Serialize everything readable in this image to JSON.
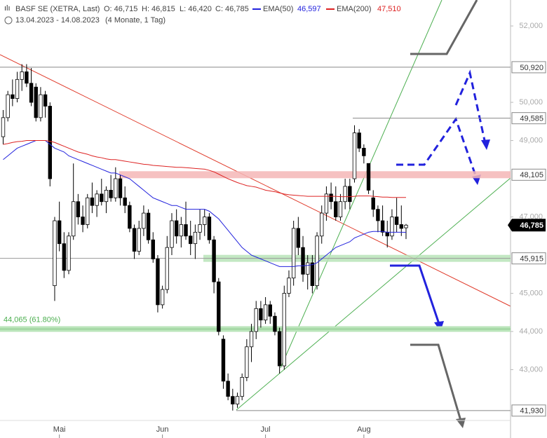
{
  "chart_data": {
    "type": "candlestick",
    "title": "BASF SE (XETRA, Last)",
    "ohlc_labels": [
      "O: 46,715",
      "H: 46,815",
      "L: 46,420",
      "C: 46,785"
    ],
    "period": "13.04.2023 - 14.08.2023",
    "period_note": "(4 Monate, 1 Tag)",
    "categories": [
      null,
      null,
      null,
      null,
      null,
      null,
      null,
      null,
      null,
      null,
      null,
      null,
      "Mai",
      null,
      null,
      null,
      null,
      null,
      null,
      null,
      null,
      null,
      null,
      null,
      null,
      null,
      null,
      null,
      null,
      null,
      null,
      null,
      null,
      null,
      "Jun",
      null,
      null,
      null,
      null,
      null,
      null,
      null,
      null,
      null,
      null,
      null,
      null,
      null,
      null,
      null,
      null,
      null,
      null,
      null,
      null,
      null,
      "Jul",
      null,
      null,
      null,
      null,
      null,
      null,
      null,
      null,
      null,
      null,
      null,
      null,
      null,
      null,
      null,
      null,
      null,
      null,
      null,
      null,
      "Aug",
      null,
      null,
      null,
      null,
      null,
      null,
      null,
      null,
      null
    ],
    "open": [
      49.1,
      49.6,
      50.2,
      50.1,
      50.6,
      50.8,
      50.5,
      50.4,
      49.6,
      50.2,
      49.9,
      45.2,
      46.9,
      46.3,
      45.6,
      46.5,
      47.4,
      47.0,
      46.8,
      47.5,
      47.3,
      47.6,
      47.4,
      47.7,
      47.5,
      48.0,
      47.5,
      47.3,
      46.7,
      46.1,
      46.7,
      47.1,
      46.4,
      45.9,
      44.7,
      45.1,
      46.2,
      46.9,
      46.5,
      46.8,
      46.5,
      46.3,
      46.6,
      46.8,
      47.0,
      46.4,
      45.3,
      43.8,
      42.7,
      42.3,
      42.1,
      42.3,
      42.8,
      43.6,
      44.0,
      44.6,
      44.3,
      44.7,
      44.4,
      44.0,
      43.1,
      45.0,
      45.4,
      46.7,
      46.2,
      45.5,
      45.8,
      45.2,
      46.5,
      47.1,
      47.6,
      47.4,
      47.0,
      47.4,
      47.8,
      48.0,
      49.2,
      48.8,
      48.4,
      47.5,
      47.2,
      46.9,
      46.6,
      46.5,
      47.0,
      46.8,
      46.715
    ],
    "high": [
      49.8,
      50.3,
      50.6,
      50.8,
      51.0,
      51.0,
      50.9,
      50.5,
      50.4,
      50.3,
      50.0,
      47.0,
      47.4,
      46.6,
      46.6,
      48.4,
      47.6,
      47.3,
      47.6,
      47.9,
      47.7,
      48.0,
      47.8,
      48.1,
      48.3,
      48.1,
      47.8,
      47.4,
      46.8,
      46.9,
      47.3,
      47.2,
      46.6,
      46.0,
      45.2,
      46.5,
      47.1,
      47.2,
      47.0,
      47.4,
      46.9,
      46.8,
      47.2,
      47.2,
      47.1,
      46.5,
      45.4,
      43.9,
      42.9,
      42.5,
      42.4,
      42.9,
      43.8,
      44.2,
      44.8,
      44.8,
      44.9,
      44.8,
      44.5,
      44.1,
      45.2,
      45.6,
      46.9,
      47.0,
      46.5,
      46.0,
      46.0,
      46.6,
      47.3,
      47.8,
      47.9,
      47.8,
      47.6,
      48.0,
      48.0,
      49.4,
      49.3,
      48.9,
      48.4,
      47.7,
      47.3,
      47.3,
      46.9,
      47.2,
      47.5,
      47.3,
      46.815
    ],
    "low": [
      48.9,
      49.5,
      49.9,
      50.0,
      50.3,
      50.4,
      49.9,
      49.5,
      49.5,
      49.6,
      47.8,
      44.8,
      46.1,
      45.4,
      45.5,
      46.4,
      46.8,
      46.6,
      46.7,
      47.1,
      47.0,
      47.3,
      47.1,
      47.4,
      47.4,
      47.3,
      47.1,
      46.6,
      45.9,
      46.0,
      46.5,
      46.3,
      45.8,
      44.5,
      44.6,
      45.0,
      46.0,
      46.3,
      46.2,
      46.4,
      46.0,
      45.9,
      46.4,
      46.5,
      46.3,
      45.0,
      43.9,
      42.5,
      42.2,
      41.93,
      42.0,
      42.2,
      42.7,
      43.2,
      43.8,
      44.1,
      44.2,
      44.2,
      43.9,
      42.9,
      43.0,
      44.9,
      45.2,
      46.0,
      45.3,
      45.1,
      45.0,
      45.1,
      46.3,
      46.9,
      47.2,
      46.9,
      46.9,
      47.2,
      47.2,
      47.9,
      48.7,
      48.4,
      47.6,
      47.0,
      46.6,
      46.5,
      46.2,
      46.4,
      46.6,
      46.5,
      46.42
    ],
    "close": [
      49.6,
      50.2,
      50.1,
      50.6,
      50.8,
      50.5,
      50.0,
      49.6,
      50.2,
      49.9,
      48.0,
      46.9,
      46.3,
      45.6,
      46.5,
      47.4,
      47.0,
      46.8,
      47.5,
      47.3,
      47.6,
      47.4,
      47.7,
      47.5,
      48.0,
      47.5,
      47.3,
      46.7,
      46.1,
      46.7,
      47.1,
      46.4,
      45.9,
      44.7,
      45.1,
      46.2,
      46.9,
      46.5,
      46.8,
      46.5,
      46.3,
      46.6,
      46.8,
      47.0,
      46.4,
      45.3,
      44.0,
      42.7,
      42.3,
      42.1,
      42.3,
      42.8,
      43.6,
      44.0,
      44.6,
      44.3,
      44.7,
      44.4,
      44.0,
      43.1,
      45.0,
      45.4,
      46.7,
      46.2,
      45.5,
      45.8,
      45.2,
      46.5,
      47.1,
      47.6,
      47.4,
      47.0,
      47.4,
      47.8,
      47.4,
      49.2,
      48.8,
      48.6,
      47.7,
      47.2,
      46.9,
      46.6,
      46.5,
      47.0,
      46.8,
      46.7,
      46.785
    ],
    "series": [
      {
        "name": "EMA(50)",
        "color": "#2222dd",
        "legend_value": "46,597",
        "values": [
          48.5,
          48.6,
          48.7,
          48.8,
          48.85,
          48.9,
          48.95,
          49.0,
          49.0,
          49.0,
          48.9,
          48.8,
          48.75,
          48.7,
          48.6,
          48.55,
          48.5,
          48.45,
          48.4,
          48.35,
          48.3,
          48.25,
          48.2,
          48.15,
          48.15,
          48.1,
          48.05,
          48.0,
          47.9,
          47.8,
          47.7,
          47.6,
          47.5,
          47.45,
          47.4,
          47.35,
          47.3,
          47.3,
          47.25,
          47.2,
          47.2,
          47.2,
          47.2,
          47.2,
          47.15,
          47.05,
          46.95,
          46.8,
          46.65,
          46.5,
          46.35,
          46.2,
          46.1,
          46.0,
          45.95,
          45.9,
          45.85,
          45.8,
          45.75,
          45.7,
          45.7,
          45.7,
          45.7,
          45.72,
          45.72,
          45.73,
          45.75,
          45.8,
          45.9,
          46.0,
          46.1,
          46.2,
          46.25,
          46.3,
          46.35,
          46.45,
          46.5,
          46.55,
          46.6,
          46.62,
          46.62,
          46.62,
          46.6,
          46.6,
          46.6,
          46.6,
          46.597
        ]
      },
      {
        "name": "EMA(200)",
        "color": "#dd2222",
        "legend_value": "47,510",
        "values": [
          48.9,
          48.92,
          48.95,
          48.97,
          48.98,
          49.0,
          49.0,
          49.0,
          49.0,
          49.0,
          48.98,
          48.95,
          48.9,
          48.85,
          48.8,
          48.75,
          48.7,
          48.67,
          48.64,
          48.6,
          48.57,
          48.55,
          48.52,
          48.5,
          48.5,
          48.48,
          48.46,
          48.44,
          48.42,
          48.4,
          48.38,
          48.37,
          48.35,
          48.34,
          48.33,
          48.32,
          48.31,
          48.3,
          48.3,
          48.29,
          48.28,
          48.27,
          48.26,
          48.25,
          48.22,
          48.18,
          48.12,
          48.06,
          48.0,
          47.95,
          47.9,
          47.86,
          47.82,
          47.8,
          47.78,
          47.74,
          47.7,
          47.68,
          47.66,
          47.63,
          47.6,
          47.58,
          47.57,
          47.56,
          47.55,
          47.54,
          47.54,
          47.54,
          47.54,
          47.54,
          47.54,
          47.54,
          47.53,
          47.53,
          47.53,
          47.54,
          47.55,
          47.55,
          47.55,
          47.54,
          47.53,
          47.52,
          47.52,
          47.51,
          47.51,
          47.51,
          47.51
        ]
      }
    ],
    "ylim": [
      41.67,
      52.68
    ],
    "yticks": [
      {
        "value": 52,
        "label": "52,000"
      },
      {
        "value": 50,
        "label": "50,000"
      },
      {
        "value": 49,
        "label": "49,000"
      },
      {
        "value": 47,
        "label": "47,000"
      },
      {
        "value": 45,
        "label": "45,000"
      },
      {
        "value": 44,
        "label": "44,000"
      },
      {
        "value": 43,
        "label": "43,000"
      }
    ],
    "levels": [
      {
        "value": 50.92,
        "label": "50,920",
        "color": "#888888"
      },
      {
        "value": 49.585,
        "label": "49,585",
        "color": "#888888"
      },
      {
        "value": 48.105,
        "label": "48,105",
        "color": "#f4b6b6"
      },
      {
        "value": 45.915,
        "label": "45,915",
        "color": "#b9e4b9"
      },
      {
        "value": 41.93,
        "label": "41,930",
        "color": "#888888"
      }
    ],
    "fib": {
      "value": 44.065,
      "label": "44,065 (61.80%)",
      "color": "#b9e4b9"
    },
    "last": {
      "value": 46.785,
      "label": "46,785"
    }
  }
}
